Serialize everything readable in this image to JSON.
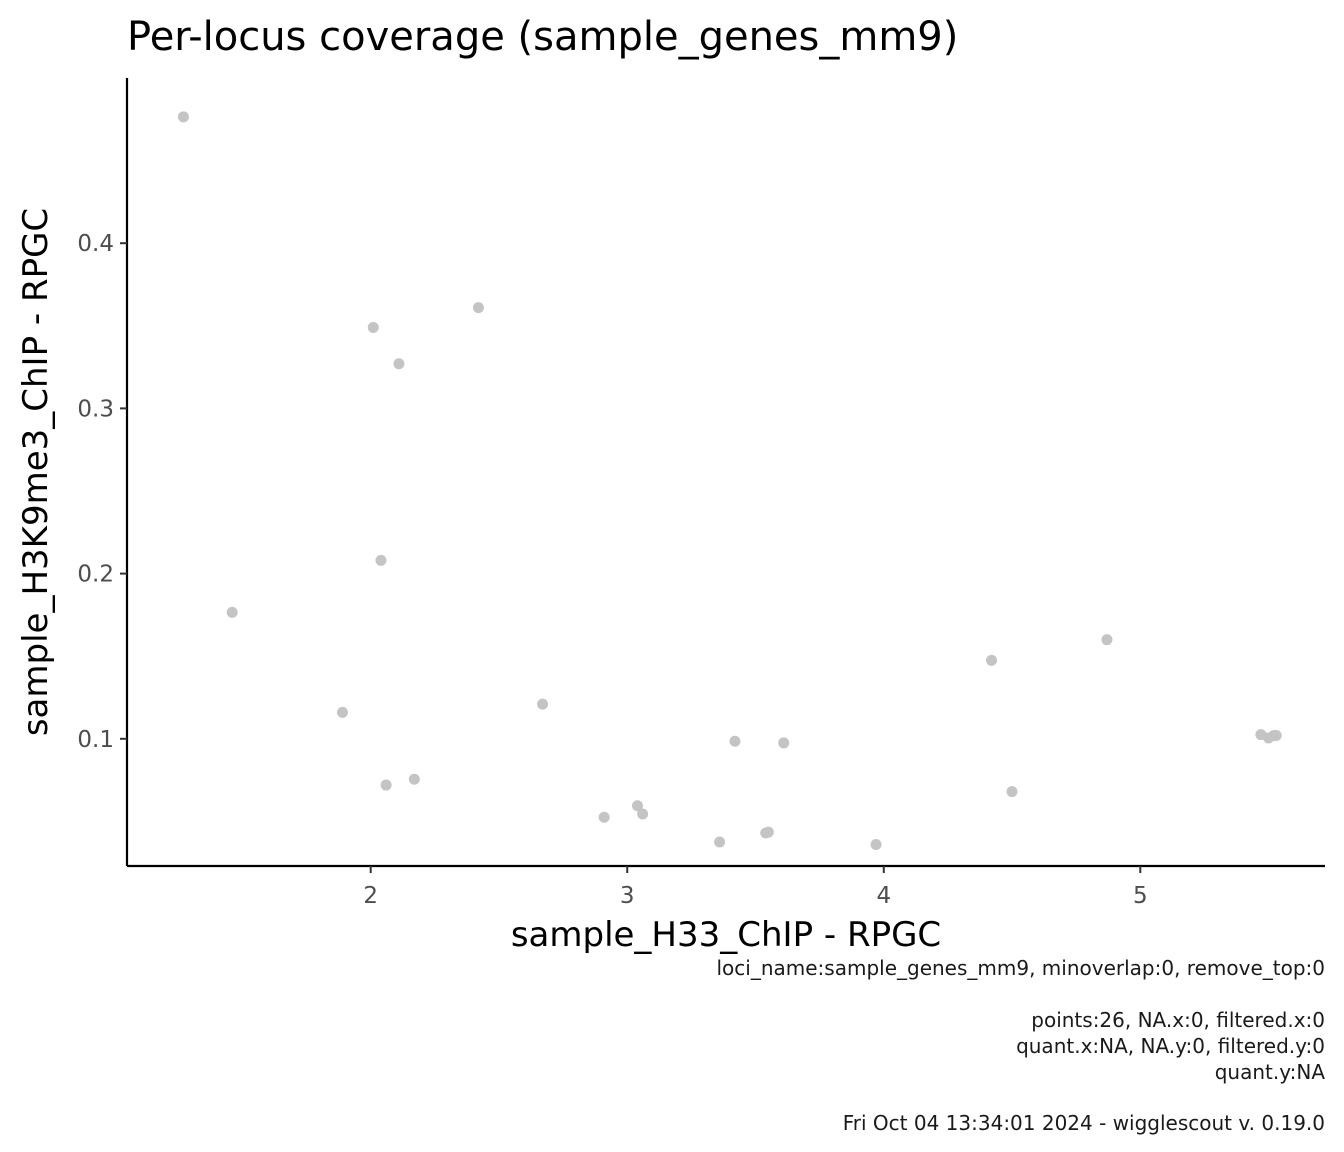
{
  "chart_data": {
    "type": "scatter",
    "title": "Per-locus coverage (sample_genes_mm9)",
    "xlabel": "sample_H33_ChIP - RPGC",
    "ylabel": "sample_H3K9me3_ChIP - RPGC",
    "xlim": [
      1.05,
      5.72
    ],
    "ylim": [
      0.023,
      0.5
    ],
    "x_ticks": [
      2,
      3,
      4,
      5
    ],
    "y_ticks": [
      0.1,
      0.2,
      0.3,
      0.4
    ],
    "x_tick_labels": [
      "2",
      "3",
      "4",
      "5"
    ],
    "y_tick_labels": [
      "0.1",
      "0.2",
      "0.3",
      "0.4"
    ],
    "grid": false,
    "point_color": "#c4c4c4",
    "points": [
      {
        "x": 1.27,
        "y": 0.4765
      },
      {
        "x": 1.46,
        "y": 0.1765
      },
      {
        "x": 1.89,
        "y": 0.116
      },
      {
        "x": 2.01,
        "y": 0.349
      },
      {
        "x": 2.04,
        "y": 0.208
      },
      {
        "x": 2.06,
        "y": 0.072
      },
      {
        "x": 2.11,
        "y": 0.327
      },
      {
        "x": 2.17,
        "y": 0.0755
      },
      {
        "x": 2.42,
        "y": 0.361
      },
      {
        "x": 2.67,
        "y": 0.121
      },
      {
        "x": 2.91,
        "y": 0.0525
      },
      {
        "x": 3.04,
        "y": 0.0595
      },
      {
        "x": 3.06,
        "y": 0.0545
      },
      {
        "x": 3.36,
        "y": 0.0375
      },
      {
        "x": 3.42,
        "y": 0.0985
      },
      {
        "x": 3.54,
        "y": 0.043
      },
      {
        "x": 3.55,
        "y": 0.0435
      },
      {
        "x": 3.61,
        "y": 0.0975
      },
      {
        "x": 3.97,
        "y": 0.036
      },
      {
        "x": 4.42,
        "y": 0.1475
      },
      {
        "x": 4.5,
        "y": 0.068
      },
      {
        "x": 4.87,
        "y": 0.16
      },
      {
        "x": 5.47,
        "y": 0.1025
      },
      {
        "x": 5.5,
        "y": 0.1005
      },
      {
        "x": 5.52,
        "y": 0.102
      },
      {
        "x": 5.53,
        "y": 0.102
      }
    ]
  },
  "caption": {
    "line1": "loci_name:sample_genes_mm9, minoverlap:0, remove_top:0",
    "line2": "points:26, NA.x:0, filtered.x:0",
    "line3": "quant.x:NA, NA.y:0, filtered.y:0",
    "line4": "quant.y:NA",
    "line5": "Fri Oct 04 13:34:01 2024 - wigglescout v. 0.19.0"
  }
}
